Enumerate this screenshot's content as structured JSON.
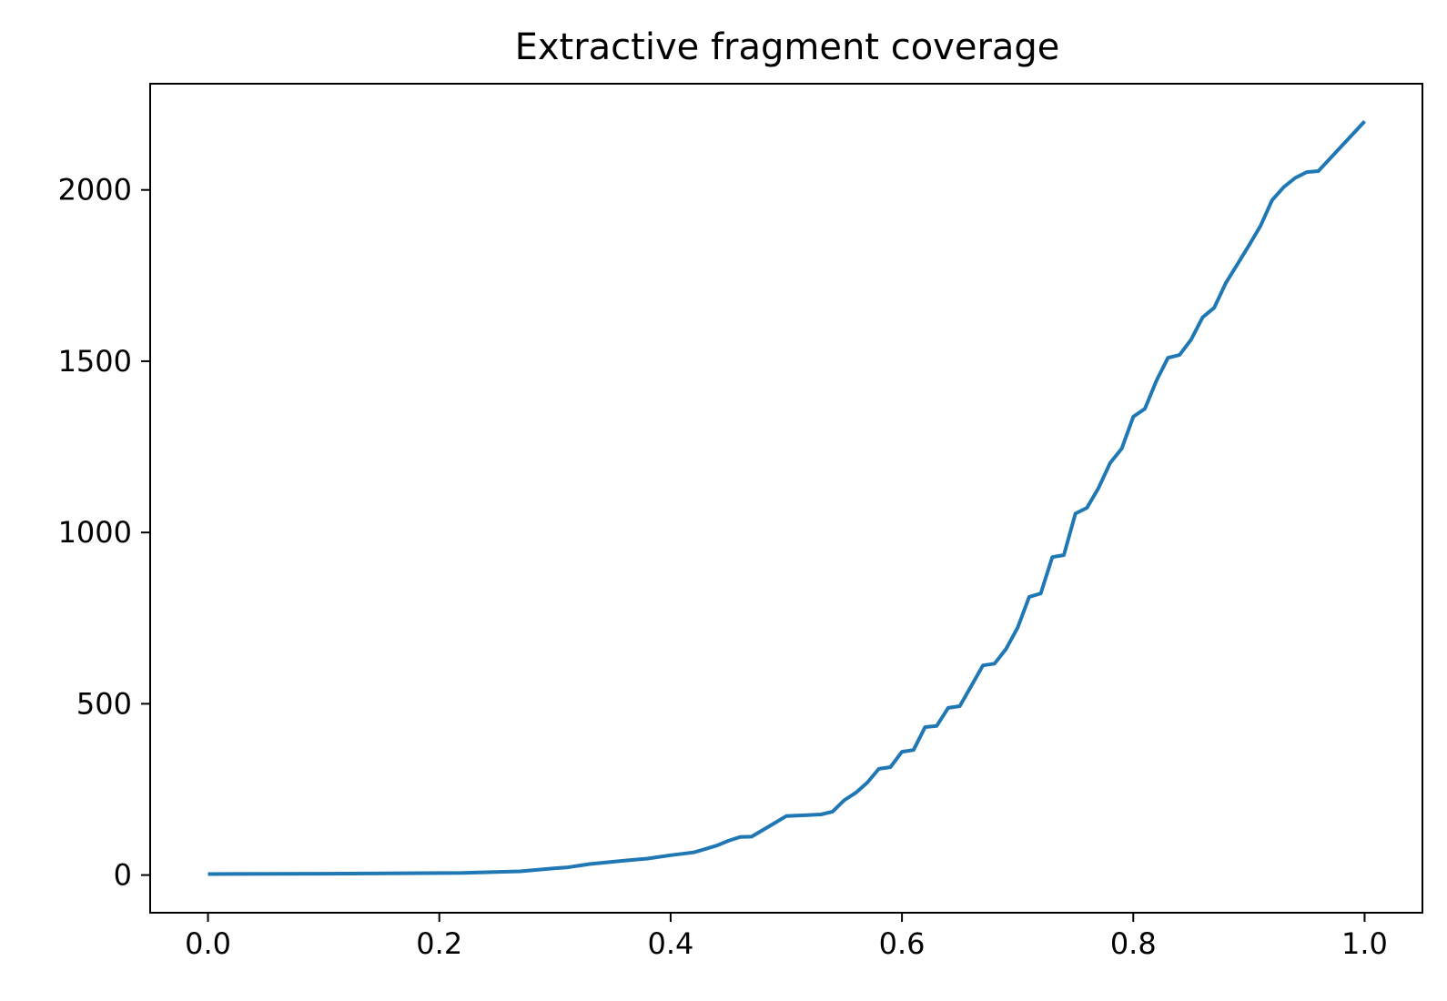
{
  "chart_data": {
    "type": "line",
    "title": "Extractive fragment coverage",
    "xlabel": "",
    "ylabel": "",
    "xlim": [
      -0.05,
      1.05
    ],
    "ylim": [
      -110,
      2310
    ],
    "xticks": [
      0.0,
      0.2,
      0.4,
      0.6,
      0.8,
      1.0
    ],
    "xtick_labels": [
      "0.0",
      "0.2",
      "0.4",
      "0.6",
      "0.8",
      "1.0"
    ],
    "yticks": [
      0,
      500,
      1000,
      1500,
      2000
    ],
    "ytick_labels": [
      "0",
      "500",
      "1000",
      "1500",
      "2000"
    ],
    "grid": false,
    "legend": "none",
    "series": [
      {
        "color": "#1f77b4",
        "x": [
          0.0,
          0.1,
          0.22,
          0.27,
          0.3,
          0.31,
          0.33,
          0.36,
          0.38,
          0.4,
          0.42,
          0.44,
          0.45,
          0.46,
          0.47,
          0.48,
          0.49,
          0.5,
          0.53,
          0.54,
          0.55,
          0.56,
          0.57,
          0.58,
          0.59,
          0.6,
          0.61,
          0.62,
          0.63,
          0.64,
          0.65,
          0.66,
          0.67,
          0.68,
          0.69,
          0.7,
          0.71,
          0.72,
          0.73,
          0.74,
          0.75,
          0.76,
          0.77,
          0.78,
          0.79,
          0.8,
          0.81,
          0.82,
          0.83,
          0.84,
          0.85,
          0.86,
          0.87,
          0.88,
          0.89,
          0.9,
          0.91,
          0.92,
          0.93,
          0.94,
          0.95,
          0.96,
          1.0
        ],
        "y": [
          3,
          4,
          6,
          11,
          20,
          22,
          32,
          42,
          48,
          58,
          66,
          86,
          100,
          111,
          112,
          132,
          152,
          172,
          177,
          185,
          218,
          240,
          270,
          310,
          315,
          360,
          365,
          432,
          435,
          488,
          493,
          552,
          612,
          617,
          660,
          722,
          812,
          822,
          928,
          934,
          1055,
          1072,
          1130,
          1203,
          1245,
          1338,
          1361,
          1443,
          1510,
          1518,
          1563,
          1628,
          1656,
          1728,
          1783,
          1838,
          1895,
          1970,
          2008,
          2035,
          2052,
          2055,
          2200
        ]
      }
    ]
  }
}
